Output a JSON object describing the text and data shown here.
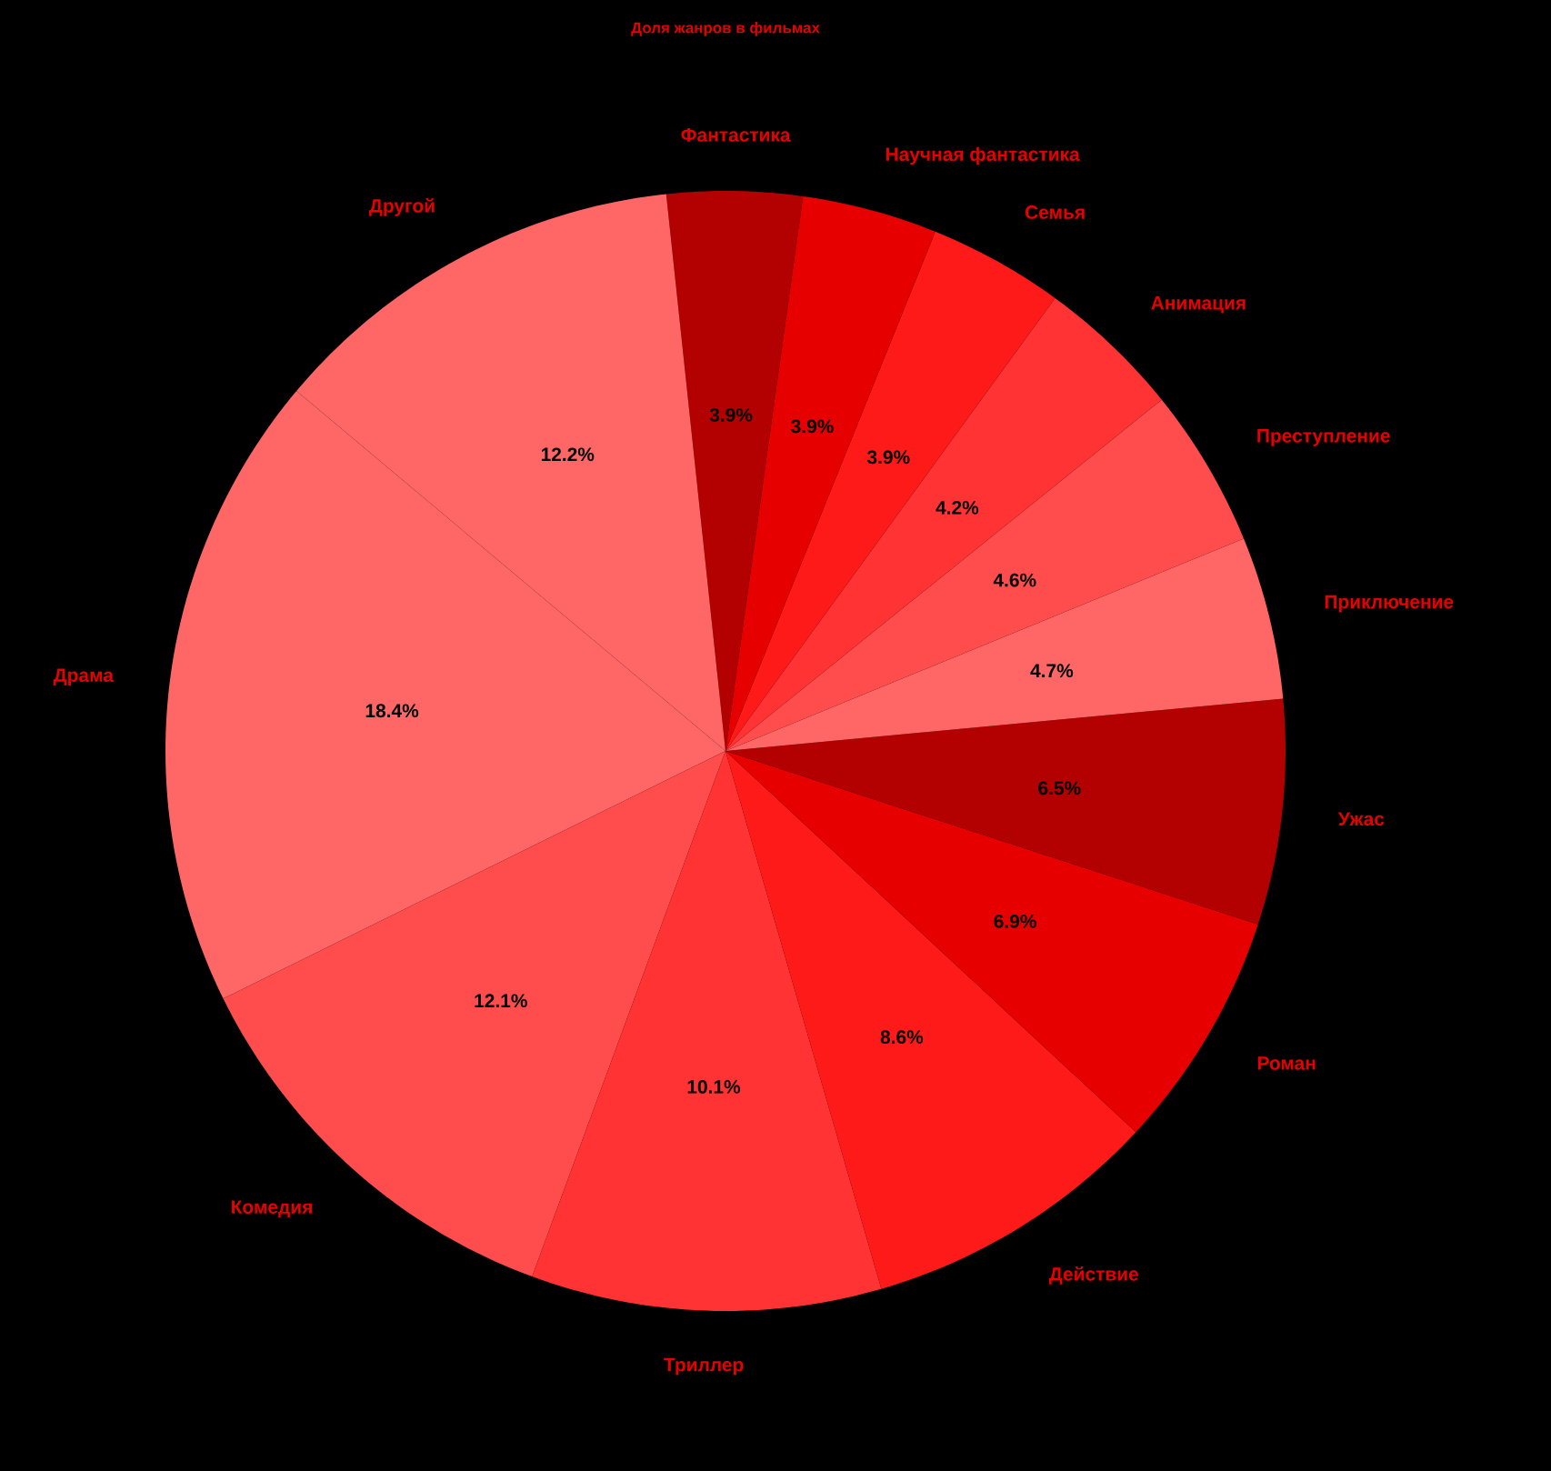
{
  "chart_data": {
    "type": "pie",
    "title": "Доля жанров в фильмах",
    "categories": [
      "Драма",
      "Комедия",
      "Триллер",
      "Действие",
      "Роман",
      "Ужас",
      "Приключение",
      "Преступление",
      "Анимация",
      "Семья",
      "Научная фантастика",
      "Фантастика",
      "Другой"
    ],
    "values": [
      18.4,
      12.1,
      10.1,
      8.6,
      6.9,
      6.5,
      4.7,
      4.6,
      4.2,
      3.9,
      3.9,
      3.9,
      12.2
    ],
    "value_labels": [
      "18.4%",
      "12.1%",
      "10.1%",
      "8.6%",
      "6.9%",
      "6.5%",
      "4.7%",
      "4.6%",
      "4.2%",
      "3.9%",
      "3.9%",
      "3.9%",
      "12.2%"
    ],
    "colors": [
      "#ff6666",
      "#ff4d4d",
      "#ff3333",
      "#ff1a1a",
      "#e60000",
      "#b30000",
      "#ff6666",
      "#ff4d4d",
      "#ff3333",
      "#ff1a1a",
      "#e60000",
      "#b30000",
      "#ff6666"
    ]
  }
}
